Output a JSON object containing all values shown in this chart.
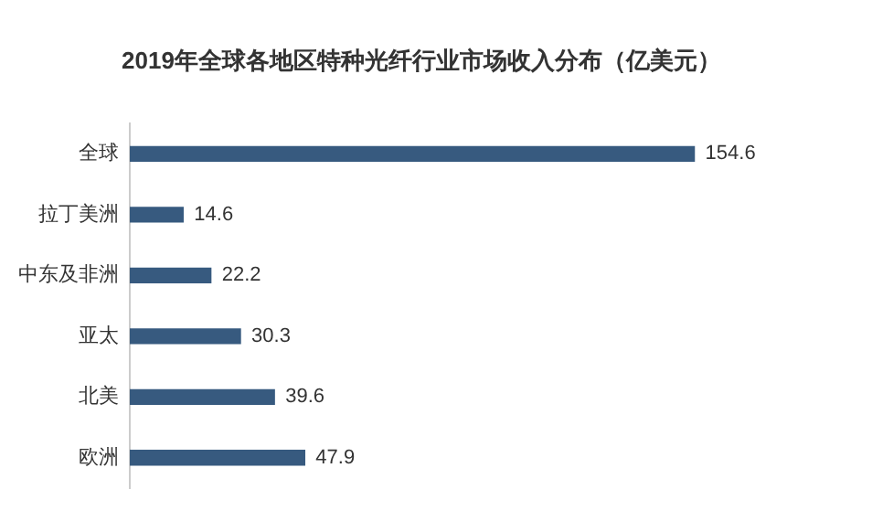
{
  "chart_data": {
    "type": "bar",
    "orientation": "horizontal",
    "title": "2019年全球各地区特种光纤行业市场收入分布（亿美元）",
    "categories": [
      "全球",
      "拉丁美洲",
      "中东及非洲",
      "亚太",
      "北美",
      "欧洲"
    ],
    "values": [
      154.6,
      14.6,
      22.2,
      30.3,
      39.6,
      47.9
    ],
    "color": "#375a7f",
    "data_labels": true,
    "legend": false
  }
}
